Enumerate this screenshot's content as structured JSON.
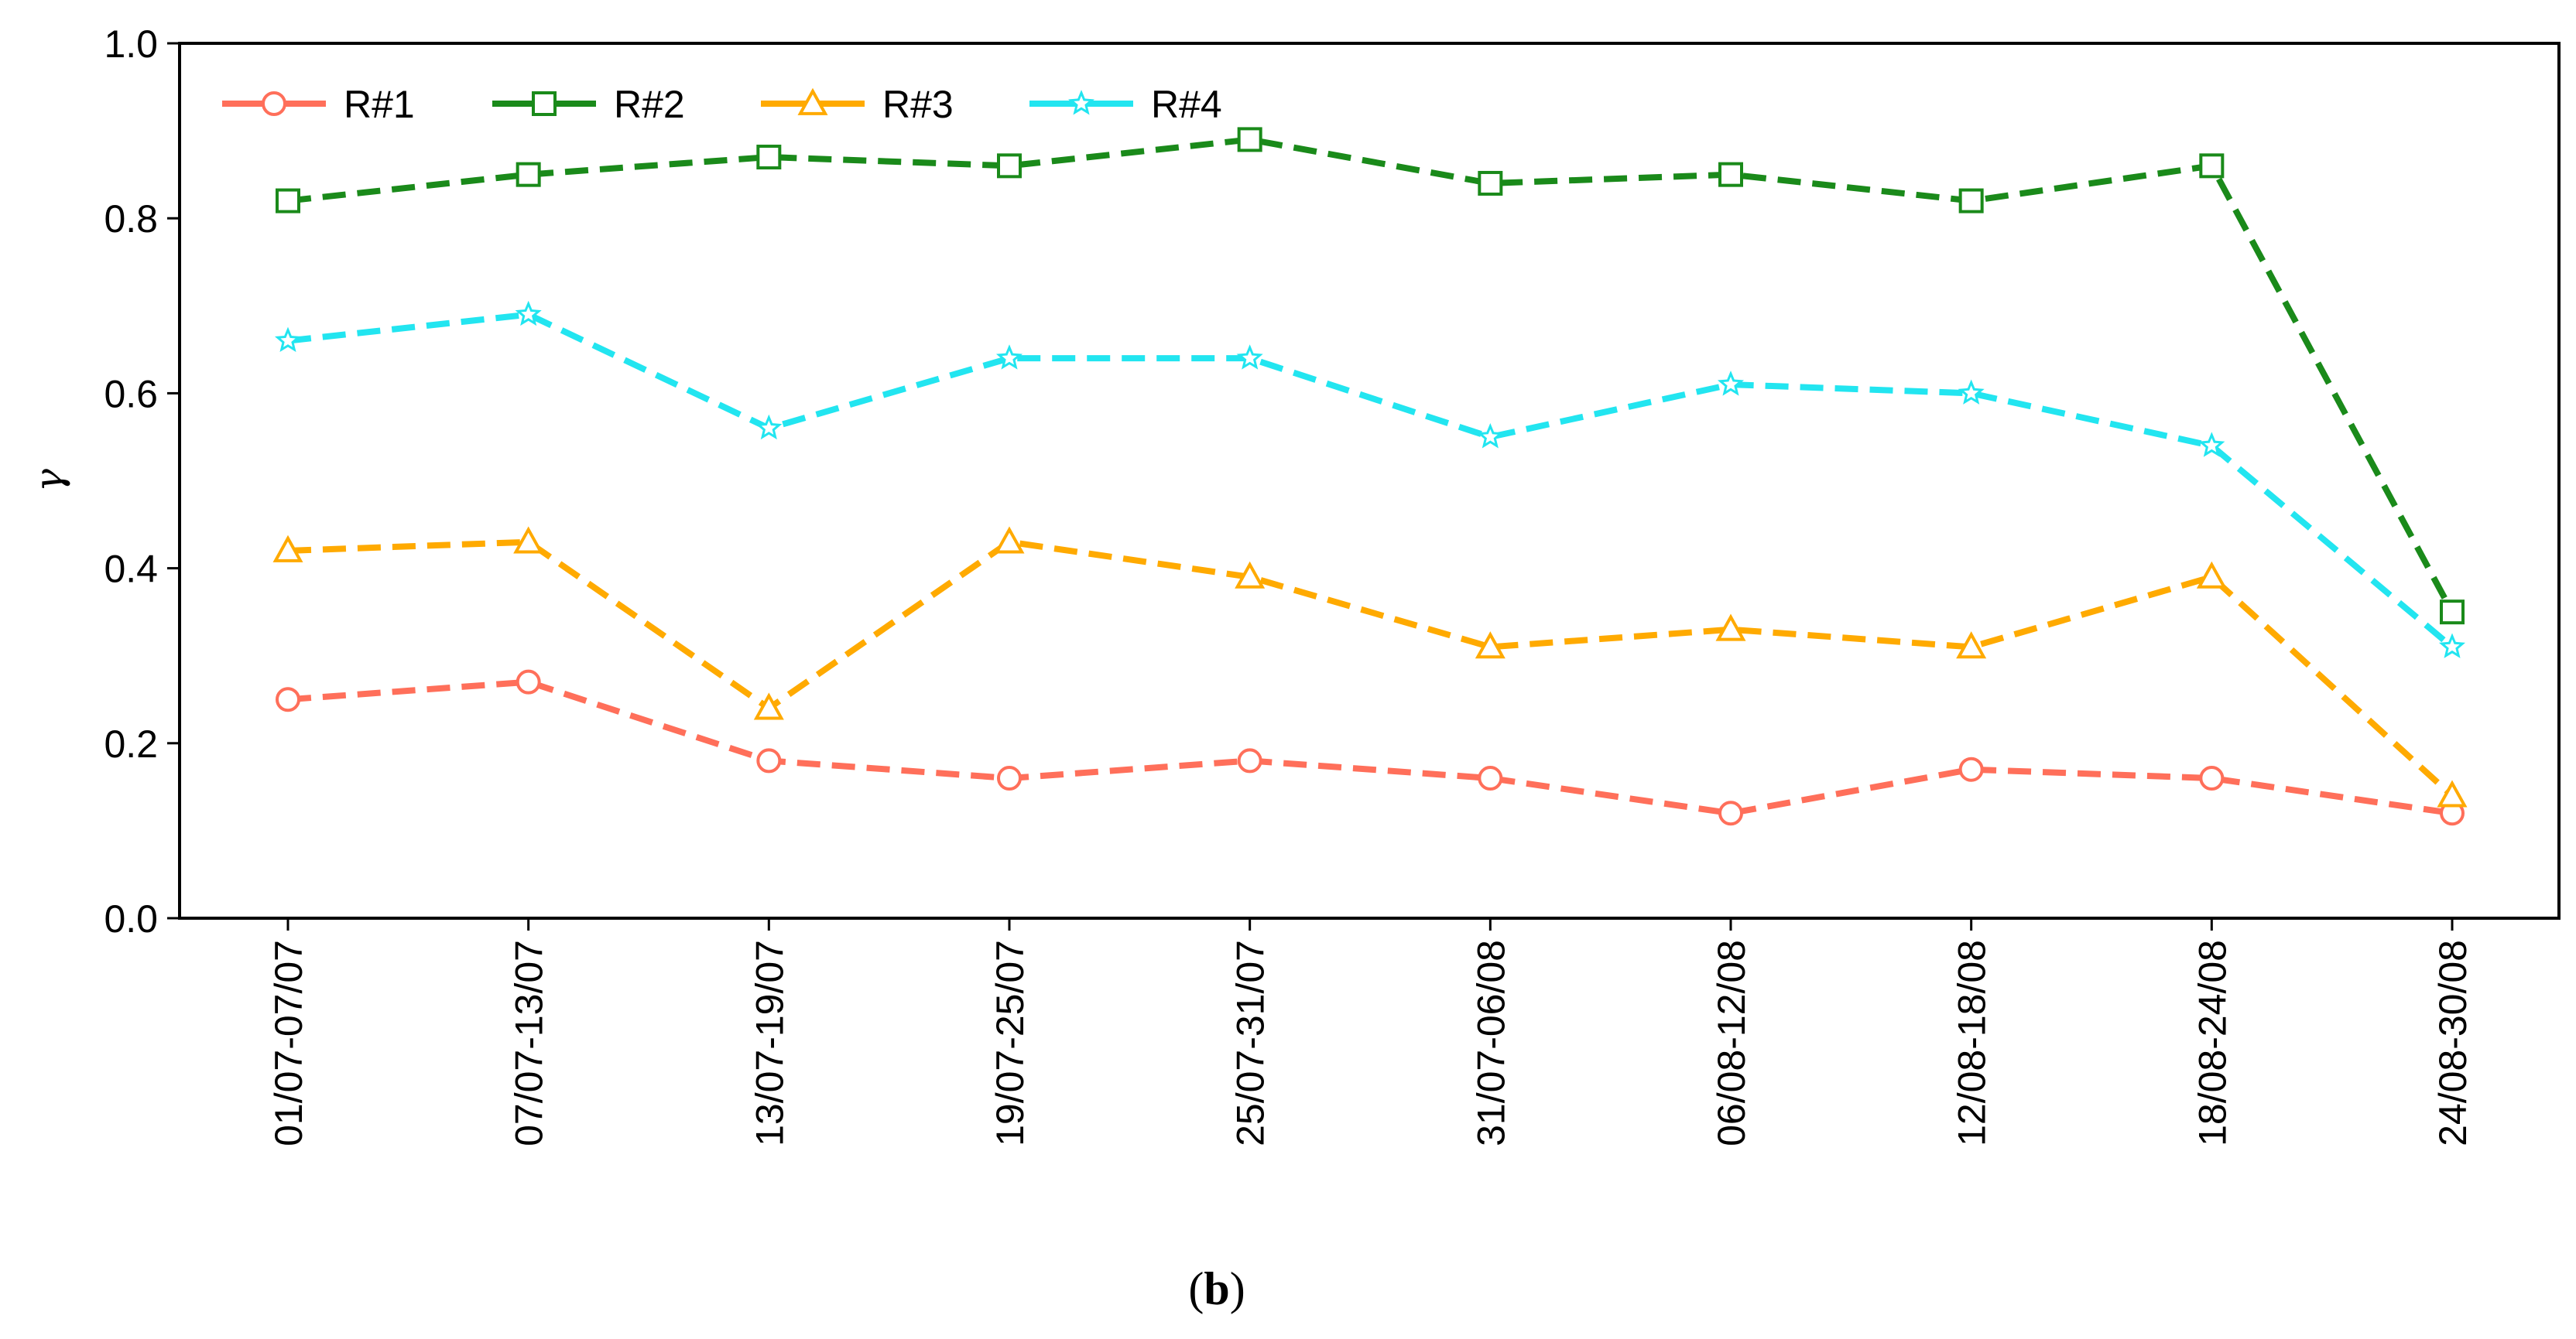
{
  "chart_data": {
    "type": "line",
    "title": "",
    "xlabel": "",
    "ylabel": "γ",
    "ylim": [
      0.0,
      1.0
    ],
    "yticks": [
      "0.0",
      "0.2",
      "0.4",
      "0.6",
      "0.8",
      "1.0"
    ],
    "ytick_values": [
      0.0,
      0.2,
      0.4,
      0.6,
      0.8,
      1.0
    ],
    "categories": [
      "01/07-07/07",
      "07/07-13/07",
      "13/07-19/07",
      "19/07-25/07",
      "25/07-31/07",
      "31/07-06/08",
      "06/08-12/08",
      "12/08-18/08",
      "18/08-24/08",
      "24/08-30/08"
    ],
    "legend_position": "top-left",
    "grid": false,
    "series": [
      {
        "name": "R#1",
        "marker": "circle",
        "color": "#FF6F5A",
        "values": [
          0.25,
          0.27,
          0.18,
          0.16,
          0.18,
          0.16,
          0.12,
          0.17,
          0.16,
          0.12
        ]
      },
      {
        "name": "R#2",
        "marker": "square",
        "color": "#1A8A1A",
        "values": [
          0.82,
          0.85,
          0.87,
          0.86,
          0.89,
          0.84,
          0.85,
          0.82,
          0.86,
          0.35
        ]
      },
      {
        "name": "R#3",
        "marker": "triangle",
        "color": "#FFAA00",
        "values": [
          0.42,
          0.43,
          0.24,
          0.43,
          0.39,
          0.31,
          0.33,
          0.31,
          0.39,
          0.14
        ]
      },
      {
        "name": "R#4",
        "marker": "star",
        "color": "#22E5F0",
        "values": [
          0.66,
          0.69,
          0.56,
          0.64,
          0.64,
          0.55,
          0.61,
          0.6,
          0.54,
          0.31
        ]
      }
    ]
  },
  "caption": {
    "prefix": "(",
    "letter": "b",
    "suffix": ")"
  }
}
